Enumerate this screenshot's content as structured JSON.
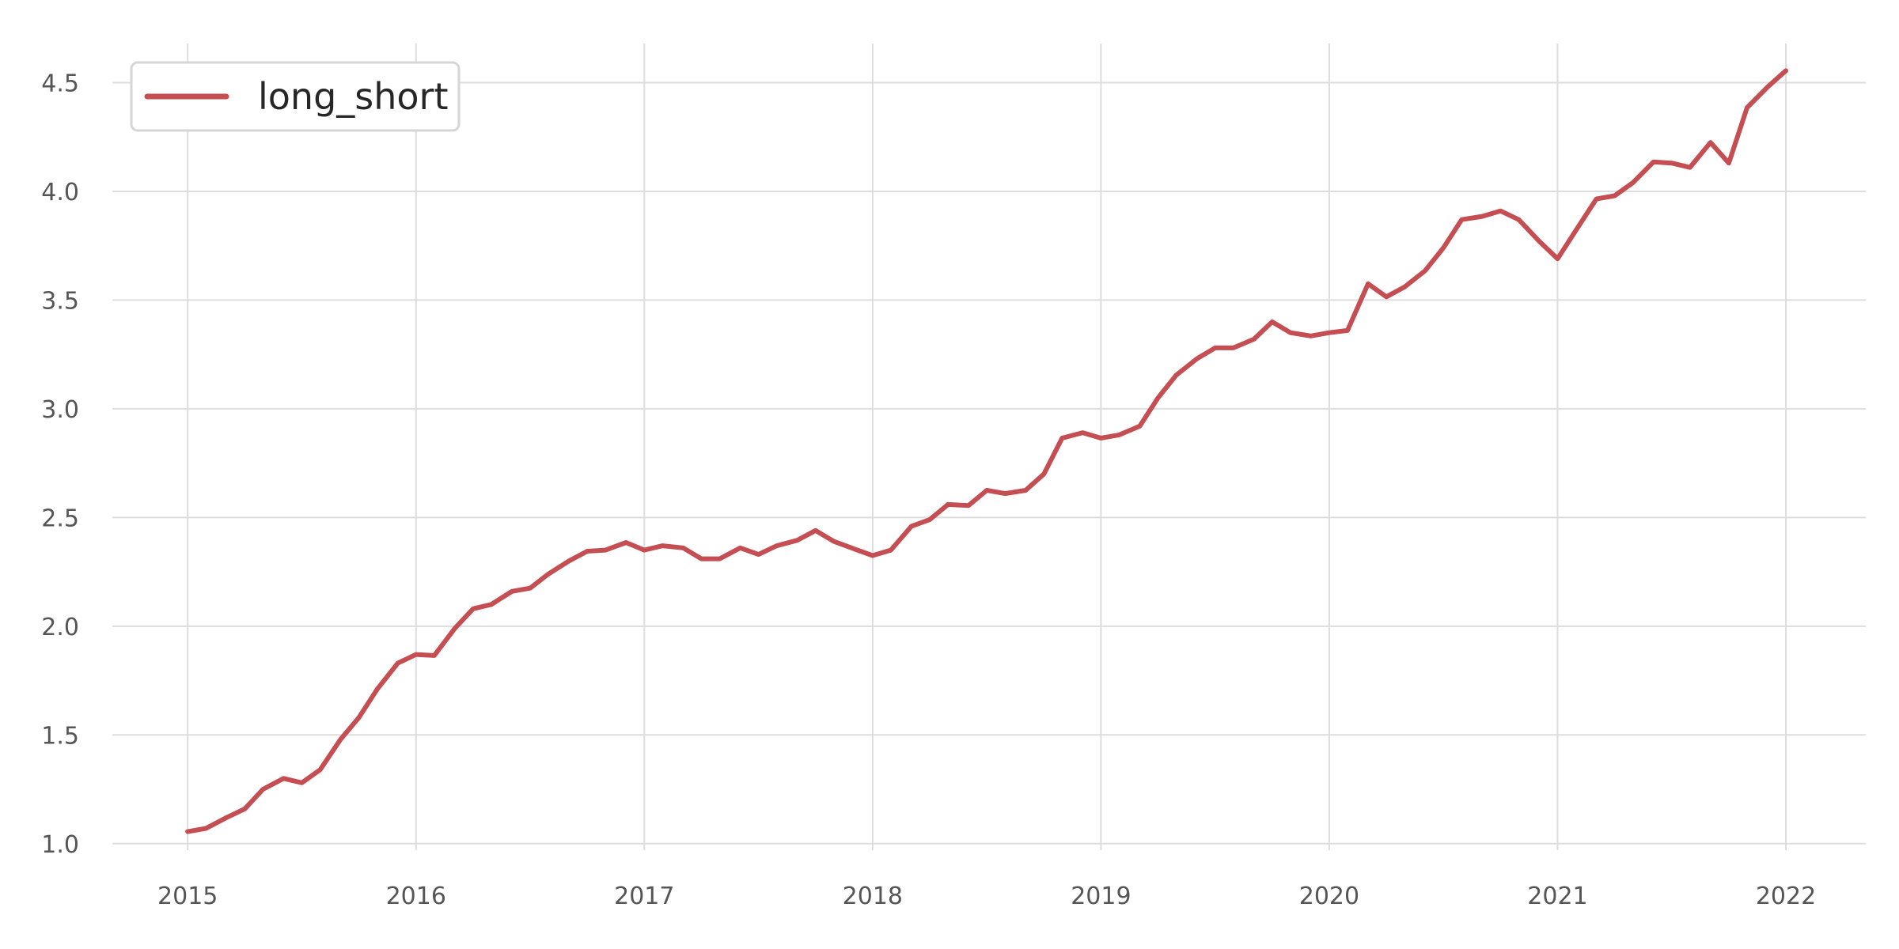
{
  "chart_data": {
    "type": "line",
    "title": "",
    "xlabel": "",
    "ylabel": "",
    "grid": true,
    "legend_position": "top-left",
    "xlim": [
      2014.67,
      2022.35
    ],
    "ylim": [
      0.97,
      4.68
    ],
    "x_ticks": [
      2015,
      2016,
      2017,
      2018,
      2019,
      2020,
      2021,
      2022
    ],
    "x_tick_labels": [
      "2015",
      "2016",
      "2017",
      "2018",
      "2019",
      "2020",
      "2021",
      "2022"
    ],
    "y_ticks": [
      1.0,
      1.5,
      2.0,
      2.5,
      3.0,
      3.5,
      4.0,
      4.5
    ],
    "y_tick_labels": [
      "1.0",
      "1.5",
      "2.0",
      "2.5",
      "3.0",
      "3.5",
      "4.0",
      "4.5"
    ],
    "series": [
      {
        "name": "long_short",
        "color": "#c44e52",
        "points": [
          [
            2015.0,
            1.055
          ],
          [
            2015.08,
            1.07
          ],
          [
            2015.17,
            1.12
          ],
          [
            2015.25,
            1.16
          ],
          [
            2015.33,
            1.25
          ],
          [
            2015.42,
            1.3
          ],
          [
            2015.5,
            1.28
          ],
          [
            2015.58,
            1.34
          ],
          [
            2015.67,
            1.48
          ],
          [
            2015.75,
            1.58
          ],
          [
            2015.83,
            1.71
          ],
          [
            2015.92,
            1.83
          ],
          [
            2016.0,
            1.87
          ],
          [
            2016.08,
            1.865
          ],
          [
            2016.17,
            1.99
          ],
          [
            2016.25,
            2.08
          ],
          [
            2016.33,
            2.1
          ],
          [
            2016.42,
            2.16
          ],
          [
            2016.5,
            2.175
          ],
          [
            2016.58,
            2.24
          ],
          [
            2016.67,
            2.3
          ],
          [
            2016.75,
            2.345
          ],
          [
            2016.83,
            2.35
          ],
          [
            2016.92,
            2.385
          ],
          [
            2017.0,
            2.35
          ],
          [
            2017.08,
            2.37
          ],
          [
            2017.17,
            2.36
          ],
          [
            2017.25,
            2.31
          ],
          [
            2017.33,
            2.31
          ],
          [
            2017.42,
            2.36
          ],
          [
            2017.5,
            2.33
          ],
          [
            2017.58,
            2.37
          ],
          [
            2017.67,
            2.395
          ],
          [
            2017.75,
            2.44
          ],
          [
            2017.83,
            2.39
          ],
          [
            2017.92,
            2.355
          ],
          [
            2018.0,
            2.325
          ],
          [
            2018.08,
            2.35
          ],
          [
            2018.17,
            2.46
          ],
          [
            2018.25,
            2.49
          ],
          [
            2018.33,
            2.56
          ],
          [
            2018.42,
            2.555
          ],
          [
            2018.5,
            2.625
          ],
          [
            2018.58,
            2.61
          ],
          [
            2018.67,
            2.625
          ],
          [
            2018.75,
            2.7
          ],
          [
            2018.83,
            2.865
          ],
          [
            2018.92,
            2.89
          ],
          [
            2019.0,
            2.865
          ],
          [
            2019.08,
            2.88
          ],
          [
            2019.17,
            2.92
          ],
          [
            2019.25,
            3.05
          ],
          [
            2019.33,
            3.155
          ],
          [
            2019.42,
            3.23
          ],
          [
            2019.5,
            3.28
          ],
          [
            2019.58,
            3.28
          ],
          [
            2019.67,
            3.32
          ],
          [
            2019.75,
            3.4
          ],
          [
            2019.83,
            3.35
          ],
          [
            2019.92,
            3.335
          ],
          [
            2020.0,
            3.35
          ],
          [
            2020.08,
            3.36
          ],
          [
            2020.17,
            3.575
          ],
          [
            2020.25,
            3.515
          ],
          [
            2020.33,
            3.56
          ],
          [
            2020.42,
            3.635
          ],
          [
            2020.5,
            3.74
          ],
          [
            2020.58,
            3.87
          ],
          [
            2020.67,
            3.885
          ],
          [
            2020.75,
            3.91
          ],
          [
            2020.83,
            3.87
          ],
          [
            2020.92,
            3.77
          ],
          [
            2021.0,
            3.69
          ],
          [
            2021.08,
            3.82
          ],
          [
            2021.17,
            3.965
          ],
          [
            2021.25,
            3.98
          ],
          [
            2021.33,
            4.04
          ],
          [
            2021.42,
            4.135
          ],
          [
            2021.5,
            4.13
          ],
          [
            2021.58,
            4.11
          ],
          [
            2021.67,
            4.225
          ],
          [
            2021.75,
            4.13
          ],
          [
            2021.83,
            4.385
          ],
          [
            2021.92,
            4.48
          ],
          [
            2022.0,
            4.555
          ]
        ]
      }
    ]
  }
}
